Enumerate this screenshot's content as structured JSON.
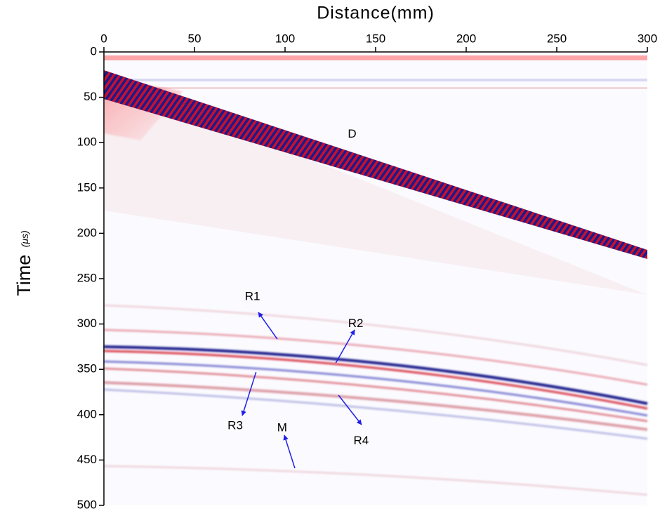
{
  "chart_data": {
    "type": "seismic-section",
    "xlabel": "Distance(mm)",
    "ylabel": "Time",
    "ylabel_unit": "(μs)",
    "xlim": [
      0,
      300
    ],
    "xticks": [
      0,
      50,
      100,
      150,
      200,
      250,
      300
    ],
    "ylim": [
      0,
      500
    ],
    "yticks": [
      0,
      50,
      100,
      150,
      200,
      250,
      300,
      350,
      400,
      450,
      500
    ],
    "arrow_color": "#1f1fe8",
    "annotations": [
      {
        "text": "D",
        "x": 137,
        "y": 91
      },
      {
        "text": "R1",
        "x": 82,
        "y": 270,
        "arrow": [
          95.7,
          316.6,
          85.3,
          287.2
        ]
      },
      {
        "text": "R2",
        "x": 139,
        "y": 300,
        "arrow": [
          128,
          343,
          138.4,
          306.5
        ]
      },
      {
        "text": "R3",
        "x": 72.5,
        "y": 412.5,
        "arrow": [
          84,
          353,
          76.4,
          401
        ]
      },
      {
        "text": "R4",
        "x": 142,
        "y": 429,
        "arrow": [
          129.5,
          378.5,
          142.2,
          411
        ]
      },
      {
        "text": "M",
        "x": 98.4,
        "y": 415,
        "arrow": [
          105.4,
          459,
          99.6,
          422.6
        ]
      }
    ]
  }
}
